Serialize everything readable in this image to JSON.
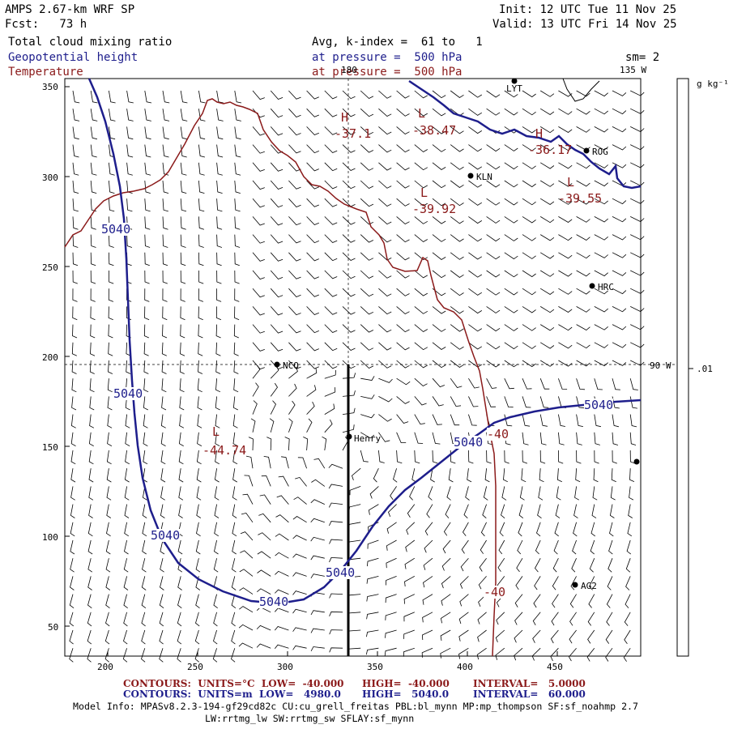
{
  "header": {
    "model": "AMPS 2.67-km WRF SP",
    "forecast": "Fcst:   73 h",
    "init": "Init: 12 UTC Tue 11 Nov 25",
    "valid": "Valid: 13 UTC Fri 14 Nov 25",
    "field1": "Total cloud mixing ratio",
    "field2": "Geopotential height",
    "field3": "Temperature",
    "avg": "Avg, k-index =  61 to   1",
    "press1": "at pressure =  500 hPa",
    "press2": "at pressure =  500 hPa",
    "sm": "sm= 2"
  },
  "colorbar": {
    "unit": "g kg⁻¹",
    "label": ".01"
  },
  "map": {
    "x_ticks": [
      "200",
      "250",
      "300",
      "350",
      "400",
      "450"
    ],
    "y_ticks": [
      "350",
      "300",
      "250",
      "200",
      "150",
      "100",
      "50"
    ],
    "lon_labels": [
      "180",
      "135 W",
      "90 W"
    ],
    "stations": [
      {
        "name": "LYT"
      },
      {
        "name": "ROG"
      },
      {
        "name": "KLN"
      },
      {
        "name": "HRC"
      },
      {
        "name": "NCO"
      },
      {
        "name": "Henry"
      },
      {
        "name": "AG2"
      },
      {
        "name": ""
      }
    ],
    "height_labels": [
      "5040",
      "5040",
      "5040",
      "5040",
      "5040",
      "5040",
      "5040"
    ],
    "temp_labels": [
      "-40",
      "-40"
    ],
    "extrema": [
      {
        "type": "H",
        "value": "-37.1"
      },
      {
        "type": "L",
        "value": "-38.47"
      },
      {
        "type": "H",
        "value": "-36.17"
      },
      {
        "type": "L",
        "value": "-39.92"
      },
      {
        "type": "L",
        "value": "-39.55"
      },
      {
        "type": "L",
        "value": "-44.74"
      }
    ]
  },
  "footer": {
    "line1a": "CONTOURS:  UNITS=°C  LOW=  -40.000",
    "line1b": "HIGH=  -40.000",
    "line1c": "INTERVAL=   5.0000",
    "line2a": "CONTOURS:  UNITS=m  LOW=   4980.0",
    "line2b": "HIGH=   5040.0",
    "line2c": "INTERVAL=   60.000",
    "model_info": "Model Info: MPASv8.2.3-194-gf29cd82c CU:cu_grell_freitas PBL:bl_mynn MP:mp_thompson SF:sf_noahmp 2.7",
    "model_info2": "LW:rrtmg_lw SW:rrtmg_sw SFLAY:sf_mynn"
  },
  "colors": {
    "height": "#1e1e8c",
    "temperature": "#8b1a1a",
    "wind": "#000000"
  }
}
